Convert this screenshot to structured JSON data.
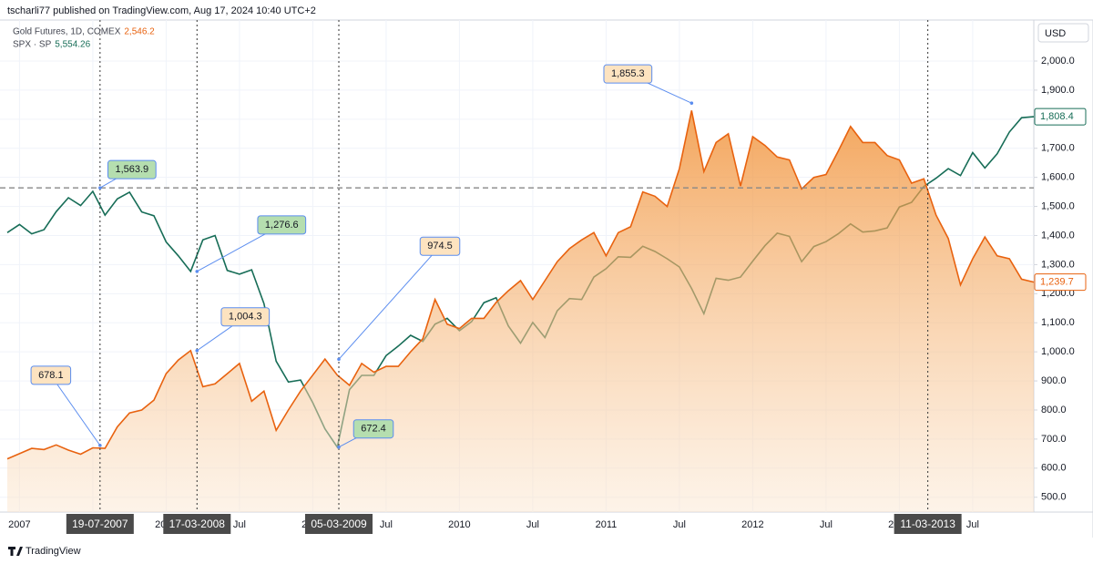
{
  "header": {
    "credit": "tscharli77 published on TradingView.com, Aug 17, 2024 10:40 UTC+2",
    "footer": "TradingView"
  },
  "chart_data": {
    "type": "line",
    "currency": "USD",
    "x": [
      "2006-12",
      "2007-01",
      "2007-02",
      "2007-03",
      "2007-04",
      "2007-05",
      "2007-06",
      "2007-07",
      "2007-08",
      "2007-09",
      "2007-10",
      "2007-11",
      "2007-12",
      "2008-01",
      "2008-02",
      "2008-03",
      "2008-04",
      "2008-05",
      "2008-06",
      "2008-07",
      "2008-08",
      "2008-09",
      "2008-10",
      "2008-11",
      "2008-12",
      "2009-01",
      "2009-02",
      "2009-03",
      "2009-04",
      "2009-05",
      "2009-06",
      "2009-07",
      "2009-08",
      "2009-09",
      "2009-10",
      "2009-11",
      "2009-12",
      "2010-01",
      "2010-02",
      "2010-03",
      "2010-04",
      "2010-05",
      "2010-06",
      "2010-07",
      "2010-08",
      "2010-09",
      "2010-10",
      "2010-11",
      "2010-12",
      "2011-01",
      "2011-02",
      "2011-03",
      "2011-04",
      "2011-05",
      "2011-06",
      "2011-07",
      "2011-08",
      "2011-09",
      "2011-10",
      "2011-11",
      "2011-12",
      "2012-01",
      "2012-02",
      "2012-03",
      "2012-04",
      "2012-05",
      "2012-06",
      "2012-07",
      "2012-08",
      "2012-09",
      "2012-10",
      "2012-11",
      "2012-12",
      "2013-01",
      "2013-02",
      "2013-03",
      "2013-04",
      "2013-05",
      "2013-06",
      "2013-07",
      "2013-08",
      "2013-09",
      "2013-10",
      "2013-11",
      "2013-12"
    ],
    "xlim": [
      "2006-12",
      "2013-12"
    ],
    "xticks": [
      {
        "value": "2007-01",
        "label": "2007"
      },
      {
        "value": "2007-07",
        "label": "Jul"
      },
      {
        "value": "2008-01",
        "label": "2008"
      },
      {
        "value": "2008-07",
        "label": "Jul"
      },
      {
        "value": "2009-01",
        "label": "2009"
      },
      {
        "value": "2009-07",
        "label": "Jul"
      },
      {
        "value": "2010-01",
        "label": "2010"
      },
      {
        "value": "2010-07",
        "label": "Jul"
      },
      {
        "value": "2011-01",
        "label": "2011"
      },
      {
        "value": "2011-07",
        "label": "Jul"
      },
      {
        "value": "2012-01",
        "label": "2012"
      },
      {
        "value": "2012-07",
        "label": "Jul"
      },
      {
        "value": "2013-01",
        "label": "2013"
      },
      {
        "value": "2013-07",
        "label": "Jul"
      }
    ],
    "ylim": [
      449,
      2141
    ],
    "yticks": [
      {
        "value": 500,
        "label": "500.0"
      },
      {
        "value": 600,
        "label": "600.0"
      },
      {
        "value": 700,
        "label": "700.0"
      },
      {
        "value": 800,
        "label": "800.0"
      },
      {
        "value": 900,
        "label": "900.0"
      },
      {
        "value": 1000,
        "label": "1,000.0"
      },
      {
        "value": 1100,
        "label": "1,100.0"
      },
      {
        "value": 1200,
        "label": "1,200.0"
      },
      {
        "value": 1300,
        "label": "1,300.0"
      },
      {
        "value": 1400,
        "label": "1,400.0"
      },
      {
        "value": 1500,
        "label": "1,500.0"
      },
      {
        "value": 1600,
        "label": "1,600.0"
      },
      {
        "value": 1700,
        "label": "1,700.0"
      },
      {
        "value": 1800,
        "label": "1,800.0"
      },
      {
        "value": 1900,
        "label": "1,900.0"
      },
      {
        "value": 2000,
        "label": "2,000.0"
      }
    ],
    "grid": true,
    "series": [
      {
        "name": "Gold Futures, 1D, COMEX",
        "legend_value": "2,546.2",
        "color": "#e8620f",
        "area": true,
        "last_label": "1,239.7",
        "values": [
          632,
          650,
          668,
          664,
          680,
          662,
          648,
          670,
          668,
          742,
          790,
          800,
          834,
          925,
          972,
          1004.3,
          880,
          890,
          925,
          960,
          830,
          865,
          730,
          800,
          865,
          920,
          975,
          920,
          885,
          960,
          930,
          950,
          950,
          1000,
          1045,
          1180,
          1095,
          1080,
          1115,
          1115,
          1170,
          1210,
          1245,
          1180,
          1245,
          1310,
          1355,
          1385,
          1410,
          1330,
          1410,
          1430,
          1550,
          1535,
          1500,
          1630,
          1830,
          1620,
          1720,
          1750,
          1570,
          1740,
          1710,
          1670,
          1660,
          1560,
          1600,
          1610,
          1690,
          1775,
          1720,
          1720,
          1675,
          1660,
          1580,
          1595,
          1470,
          1390,
          1230,
          1320,
          1395,
          1330,
          1320,
          1250,
          1239.7
        ]
      },
      {
        "name": "SPX · SP",
        "legend_value": "5,554.26",
        "color": "#176d57",
        "area": false,
        "last_label": "1,808.4",
        "values": [
          1410,
          1438,
          1406,
          1420,
          1482,
          1530,
          1503,
          1552,
          1470,
          1526,
          1549,
          1481,
          1468,
          1378,
          1330,
          1276.6,
          1385,
          1400,
          1280,
          1267,
          1282,
          1166,
          968,
          896,
          903,
          825,
          735,
          672.4,
          870,
          919,
          919,
          987,
          1020,
          1057,
          1036,
          1095,
          1115,
          1073,
          1104,
          1169,
          1186,
          1089,
          1030,
          1101,
          1049,
          1141,
          1183,
          1180,
          1257,
          1286,
          1327,
          1325,
          1363,
          1345,
          1320,
          1292,
          1218,
          1131,
          1253,
          1246,
          1257,
          1312,
          1365,
          1408,
          1397,
          1310,
          1362,
          1379,
          1406,
          1440,
          1412,
          1416,
          1426,
          1498,
          1514,
          1569,
          1597,
          1630,
          1606,
          1685,
          1632,
          1681,
          1756,
          1805,
          1808.4
        ]
      }
    ],
    "markers": [
      {
        "x": "2007-07-19",
        "label": "19-07-2007"
      },
      {
        "x": "2008-03-17",
        "label": "17-03-2008"
      },
      {
        "x": "2009-03-05",
        "label": "05-03-2009"
      },
      {
        "x": "2013-03-11",
        "label": "11-03-2013"
      }
    ],
    "annotations": [
      {
        "x": "2007-07-19",
        "value": 678.1,
        "label": "678.1",
        "series": 0
      },
      {
        "x": "2007-07-19",
        "value": 1563.9,
        "label": "1,563.9",
        "series": 1
      },
      {
        "x": "2008-03-17",
        "value": 1004.3,
        "label": "1,004.3",
        "series": 0
      },
      {
        "x": "2008-03-17",
        "value": 1276.6,
        "label": "1,276.6",
        "series": 1
      },
      {
        "x": "2009-03-05",
        "value": 974.5,
        "label": "974.5",
        "series": 0
      },
      {
        "x": "2009-03-05",
        "value": 672.4,
        "label": "672.4",
        "series": 1
      },
      {
        "x": "2011-08",
        "value": 1855.3,
        "label": "1,855.3",
        "series": 0
      }
    ]
  }
}
